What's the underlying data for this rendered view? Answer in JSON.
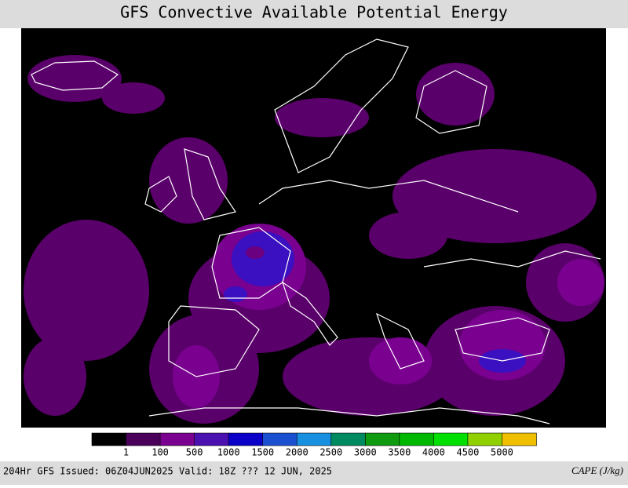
{
  "header": {
    "title": "GFS Convective Available Potential Energy"
  },
  "colorbar": {
    "labels": [
      "1",
      "100",
      "500",
      "1000",
      "1500",
      "2000",
      "2500",
      "3000",
      "3500",
      "4000",
      "4500",
      "5000"
    ]
  },
  "footer": {
    "left": "204Hr GFS Issued: 06Z04JUN2025 Valid: 18Z ??? 12 JUN, 2025",
    "right": "CAPE (J/kg)"
  }
}
